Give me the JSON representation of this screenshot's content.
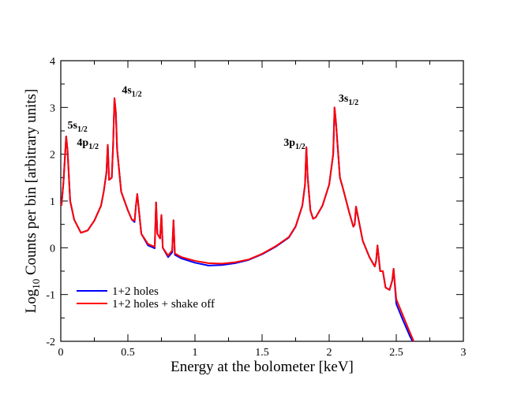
{
  "chart_data": {
    "type": "line",
    "title": "",
    "xlabel": "Energy at the bolometer [keV]",
    "ylabel": {
      "main": "Log",
      "sub": "10",
      "rest": " Counts per bin [arbitrary units]"
    },
    "xlim": [
      0,
      3
    ],
    "ylim": [
      -2,
      4
    ],
    "xticks": [
      0,
      0.5,
      1,
      1.5,
      2,
      2.5,
      3
    ],
    "xtick_labels": [
      "0",
      "0.5",
      "1",
      "1.5",
      "2",
      "2.5",
      "3"
    ],
    "yticks": [
      -2,
      -1,
      0,
      1,
      2,
      3,
      4
    ],
    "ytick_labels": [
      "-2",
      "-1",
      "0",
      "1",
      "2",
      "3",
      "4"
    ],
    "grid": false,
    "legend_position": "lower-left",
    "series": [
      {
        "name": "1+2 holes",
        "color": "#0000ff",
        "x": [
          0.005,
          0.02,
          0.04,
          0.05,
          0.07,
          0.1,
          0.15,
          0.2,
          0.25,
          0.3,
          0.32,
          0.34,
          0.35,
          0.36,
          0.38,
          0.39,
          0.4,
          0.41,
          0.42,
          0.45,
          0.5,
          0.53,
          0.55,
          0.56,
          0.57,
          0.6,
          0.65,
          0.7,
          0.71,
          0.72,
          0.74,
          0.75,
          0.76,
          0.8,
          0.83,
          0.84,
          0.85,
          0.9,
          1.0,
          1.1,
          1.2,
          1.3,
          1.4,
          1.5,
          1.6,
          1.7,
          1.75,
          1.8,
          1.82,
          1.83,
          1.84,
          1.86,
          1.88,
          1.9,
          1.95,
          2.0,
          2.03,
          2.04,
          2.05,
          2.08,
          2.1,
          2.15,
          2.18,
          2.19,
          2.2,
          2.25,
          2.3,
          2.34,
          2.35,
          2.36,
          2.38,
          2.4,
          2.42,
          2.45,
          2.47,
          2.48,
          2.5,
          2.55,
          2.6,
          2.63
        ],
        "values": [
          0.9,
          1.4,
          2.38,
          2.1,
          1.0,
          0.6,
          0.32,
          0.37,
          0.58,
          0.9,
          1.2,
          1.6,
          2.2,
          1.45,
          1.5,
          2.2,
          3.2,
          2.9,
          2.1,
          1.2,
          0.8,
          0.6,
          0.55,
          0.9,
          1.15,
          0.3,
          0.05,
          -0.01,
          0.97,
          0.3,
          0.2,
          0.7,
          0.0,
          -0.2,
          -0.1,
          0.59,
          -0.15,
          -0.23,
          -0.32,
          -0.38,
          -0.37,
          -0.33,
          -0.26,
          -0.14,
          0.02,
          0.22,
          0.45,
          0.9,
          1.35,
          2.15,
          1.5,
          0.8,
          0.62,
          0.65,
          0.9,
          1.35,
          2.0,
          3.0,
          2.7,
          1.5,
          1.3,
          0.75,
          0.45,
          0.5,
          0.88,
          0.15,
          -0.2,
          -0.4,
          -0.28,
          0.05,
          -0.5,
          -0.5,
          -0.85,
          -0.9,
          -0.7,
          -0.45,
          -1.2,
          -1.55,
          -1.88,
          -2.05
        ]
      },
      {
        "name": "1+2 holes + shake off",
        "color": "#ff0000",
        "x": [
          0.005,
          0.02,
          0.04,
          0.05,
          0.07,
          0.1,
          0.15,
          0.2,
          0.25,
          0.3,
          0.32,
          0.34,
          0.35,
          0.36,
          0.38,
          0.39,
          0.4,
          0.41,
          0.42,
          0.45,
          0.5,
          0.53,
          0.55,
          0.56,
          0.57,
          0.6,
          0.65,
          0.7,
          0.71,
          0.72,
          0.74,
          0.75,
          0.76,
          0.8,
          0.83,
          0.84,
          0.85,
          0.9,
          1.0,
          1.1,
          1.2,
          1.3,
          1.4,
          1.5,
          1.6,
          1.7,
          1.75,
          1.8,
          1.82,
          1.83,
          1.84,
          1.86,
          1.88,
          1.9,
          1.95,
          2.0,
          2.03,
          2.04,
          2.05,
          2.08,
          2.1,
          2.15,
          2.18,
          2.19,
          2.2,
          2.25,
          2.3,
          2.34,
          2.35,
          2.36,
          2.38,
          2.4,
          2.42,
          2.45,
          2.47,
          2.48,
          2.5,
          2.55,
          2.6,
          2.63
        ],
        "values": [
          0.9,
          1.4,
          2.38,
          2.1,
          1.0,
          0.6,
          0.32,
          0.37,
          0.58,
          0.9,
          1.2,
          1.6,
          2.2,
          1.45,
          1.5,
          2.2,
          3.2,
          2.9,
          2.1,
          1.2,
          0.8,
          0.6,
          0.58,
          0.9,
          1.15,
          0.3,
          0.08,
          0.02,
          0.97,
          0.3,
          0.2,
          0.7,
          0.0,
          -0.17,
          -0.05,
          0.59,
          -0.12,
          -0.2,
          -0.28,
          -0.33,
          -0.34,
          -0.31,
          -0.25,
          -0.13,
          0.03,
          0.23,
          0.46,
          0.9,
          1.35,
          2.15,
          1.5,
          0.8,
          0.62,
          0.65,
          0.9,
          1.35,
          2.0,
          3.0,
          2.7,
          1.5,
          1.3,
          0.75,
          0.45,
          0.5,
          0.88,
          0.15,
          -0.2,
          -0.4,
          -0.28,
          0.05,
          -0.5,
          -0.5,
          -0.85,
          -0.9,
          -0.7,
          -0.45,
          -1.1,
          -1.45,
          -1.8,
          -2.0
        ]
      }
    ],
    "annotations": [
      {
        "main": "5s",
        "sub": "1/2",
        "x": 0.05,
        "y": 2.55
      },
      {
        "main": "4p",
        "sub": "1/2",
        "x": 0.12,
        "y": 2.18
      },
      {
        "main": "4s",
        "sub": "1/2",
        "x": 0.455,
        "y": 3.3
      },
      {
        "main": "3p",
        "sub": "1/2",
        "x": 1.66,
        "y": 2.18
      },
      {
        "main": "3s",
        "sub": "1/2",
        "x": 2.07,
        "y": 3.12
      }
    ]
  }
}
